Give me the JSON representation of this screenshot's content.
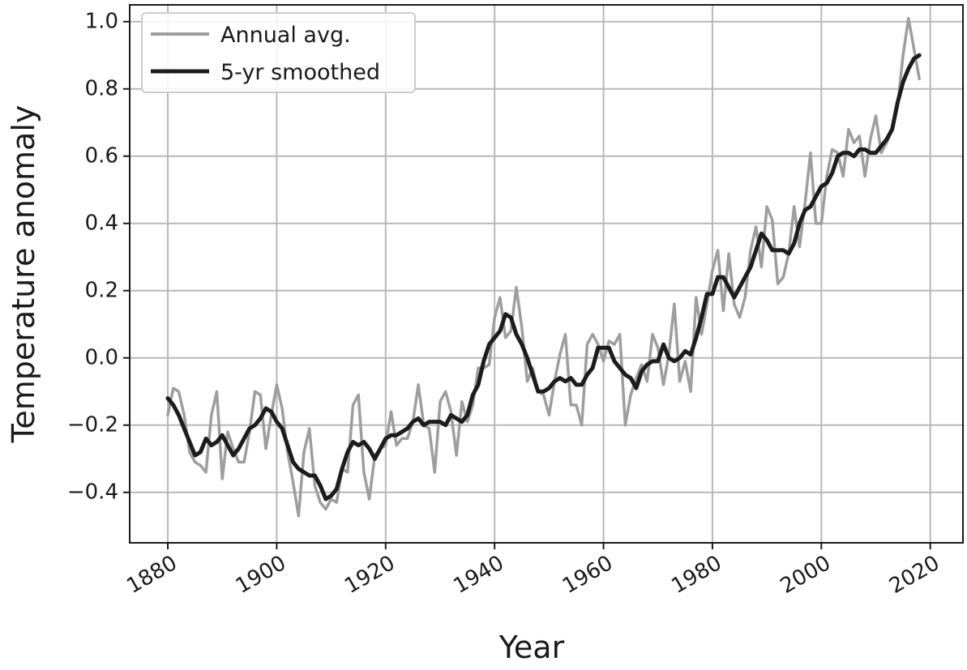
{
  "chart_data": {
    "type": "line",
    "xlabel": "Year",
    "ylabel": "Temperature anomaly",
    "xlim": [
      1873,
      2026
    ],
    "ylim": [
      -0.55,
      1.05
    ],
    "x_ticks": [
      1880,
      1900,
      1920,
      1940,
      1960,
      1980,
      2000,
      2020
    ],
    "y_ticks": [
      -0.4,
      -0.2,
      0.0,
      0.2,
      0.4,
      0.6,
      0.8,
      1.0
    ],
    "y_tick_labels": [
      "−0.4",
      "−0.2",
      "0.0",
      "0.2",
      "0.4",
      "0.6",
      "0.8",
      "1.0"
    ],
    "grid": true,
    "legend_position": "top-left",
    "x_start": 1880,
    "series": [
      {
        "name": "Annual avg.",
        "color": "#9e9e9e",
        "values": [
          -0.17,
          -0.09,
          -0.1,
          -0.17,
          -0.28,
          -0.31,
          -0.32,
          -0.34,
          -0.17,
          -0.1,
          -0.36,
          -0.22,
          -0.27,
          -0.31,
          -0.31,
          -0.22,
          -0.1,
          -0.11,
          -0.27,
          -0.17,
          -0.08,
          -0.15,
          -0.28,
          -0.37,
          -0.47,
          -0.28,
          -0.21,
          -0.38,
          -0.43,
          -0.45,
          -0.42,
          -0.43,
          -0.33,
          -0.34,
          -0.14,
          -0.11,
          -0.34,
          -0.42,
          -0.29,
          -0.27,
          -0.26,
          -0.16,
          -0.26,
          -0.24,
          -0.24,
          -0.19,
          -0.08,
          -0.2,
          -0.21,
          -0.34,
          -0.13,
          -0.1,
          -0.16,
          -0.29,
          -0.13,
          -0.19,
          -0.14,
          -0.03,
          -0.03,
          -0.02,
          0.12,
          0.18,
          0.06,
          0.08,
          0.21,
          0.09,
          -0.07,
          -0.03,
          -0.1,
          -0.11,
          -0.17,
          -0.07,
          0.01,
          0.07,
          -0.14,
          -0.14,
          -0.2,
          0.04,
          0.07,
          0.04,
          -0.01,
          0.05,
          0.04,
          0.07,
          -0.2,
          -0.11,
          -0.06,
          -0.02,
          -0.07,
          0.07,
          0.03,
          -0.08,
          0.01,
          0.16,
          -0.07,
          -0.01,
          -0.1,
          0.18,
          0.07,
          0.16,
          0.26,
          0.32,
          0.14,
          0.31,
          0.16,
          0.12,
          0.18,
          0.32,
          0.39,
          0.27,
          0.45,
          0.41,
          0.22,
          0.24,
          0.31,
          0.45,
          0.33,
          0.46,
          0.61,
          0.4,
          0.4,
          0.54,
          0.62,
          0.61,
          0.54,
          0.68,
          0.64,
          0.66,
          0.54,
          0.65,
          0.72,
          0.61,
          0.64,
          0.68,
          0.75,
          0.9,
          1.01,
          0.92,
          0.83
        ]
      },
      {
        "name": "5-yr smoothed",
        "color": "#1c1c1c",
        "values": [
          -0.12,
          -0.14,
          -0.17,
          -0.21,
          -0.25,
          -0.29,
          -0.28,
          -0.24,
          -0.26,
          -0.25,
          -0.23,
          -0.26,
          -0.29,
          -0.27,
          -0.24,
          -0.21,
          -0.2,
          -0.18,
          -0.15,
          -0.16,
          -0.19,
          -0.21,
          -0.26,
          -0.31,
          -0.33,
          -0.34,
          -0.35,
          -0.35,
          -0.38,
          -0.42,
          -0.41,
          -0.39,
          -0.33,
          -0.28,
          -0.25,
          -0.26,
          -0.25,
          -0.27,
          -0.3,
          -0.27,
          -0.24,
          -0.23,
          -0.23,
          -0.22,
          -0.21,
          -0.19,
          -0.18,
          -0.2,
          -0.19,
          -0.19,
          -0.19,
          -0.2,
          -0.17,
          -0.18,
          -0.19,
          -0.17,
          -0.11,
          -0.08,
          -0.01,
          0.04,
          0.06,
          0.08,
          0.13,
          0.12,
          0.07,
          0.04,
          0.0,
          -0.05,
          -0.1,
          -0.1,
          -0.09,
          -0.07,
          -0.06,
          -0.07,
          -0.06,
          -0.08,
          -0.08,
          -0.05,
          -0.03,
          0.03,
          0.03,
          0.03,
          -0.01,
          -0.03,
          -0.05,
          -0.06,
          -0.09,
          -0.04,
          -0.02,
          -0.01,
          -0.01,
          0.04,
          0.0,
          -0.01,
          0.0,
          0.02,
          0.01,
          0.06,
          0.12,
          0.19,
          0.19,
          0.24,
          0.24,
          0.21,
          0.18,
          0.21,
          0.24,
          0.27,
          0.32,
          0.37,
          0.35,
          0.32,
          0.32,
          0.32,
          0.31,
          0.34,
          0.4,
          0.44,
          0.45,
          0.48,
          0.51,
          0.52,
          0.55,
          0.6,
          0.61,
          0.61,
          0.6,
          0.62,
          0.62,
          0.61,
          0.61,
          0.63,
          0.65,
          0.68,
          0.76,
          0.82,
          0.86,
          0.89,
          0.9
        ]
      }
    ]
  }
}
